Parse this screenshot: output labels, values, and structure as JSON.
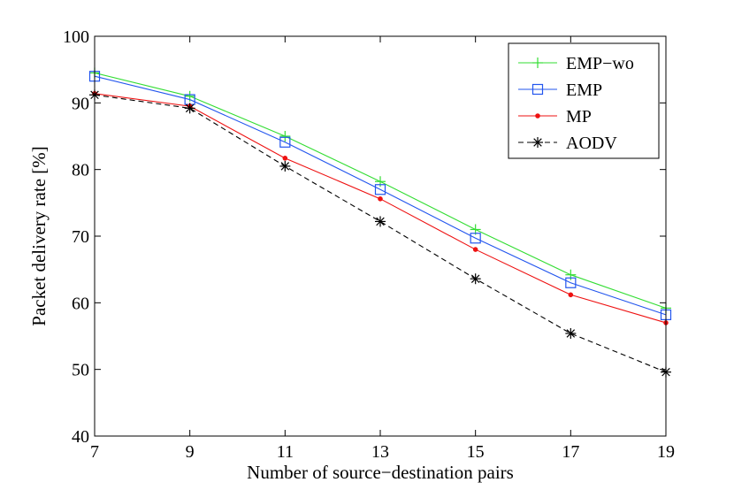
{
  "chart_data": {
    "type": "line",
    "title": "",
    "xlabel": "Number of source−destination pairs",
    "ylabel": "Packet delivery rate [%]",
    "x": [
      7,
      9,
      11,
      13,
      15,
      17,
      19
    ],
    "xlim": [
      7,
      19
    ],
    "ylim": [
      40,
      100
    ],
    "xticks": [
      "7",
      "9",
      "11",
      "13",
      "15",
      "17",
      "19"
    ],
    "yticks": [
      "40",
      "50",
      "60",
      "70",
      "80",
      "90",
      "100"
    ],
    "grid": false,
    "legend_position": "top-right",
    "series": [
      {
        "name": "EMP−wo",
        "values": [
          94.5,
          91.0,
          85.0,
          78.2,
          71.0,
          64.2,
          59.2
        ],
        "color": "#33dd33",
        "marker": "plus",
        "dash": "solid"
      },
      {
        "name": "EMP",
        "values": [
          94.0,
          90.5,
          84.1,
          77.0,
          69.7,
          63.0,
          58.2
        ],
        "color": "#2255ee",
        "marker": "square",
        "dash": "solid"
      },
      {
        "name": "MP",
        "values": [
          91.4,
          89.5,
          81.7,
          75.6,
          68.0,
          61.2,
          57.0
        ],
        "color": "#ee1111",
        "marker": "dot",
        "dash": "solid"
      },
      {
        "name": "AODV",
        "values": [
          91.2,
          89.2,
          80.5,
          72.2,
          63.6,
          55.4,
          49.6
        ],
        "color": "#000000",
        "marker": "asterisk",
        "dash": "dashed"
      }
    ]
  }
}
